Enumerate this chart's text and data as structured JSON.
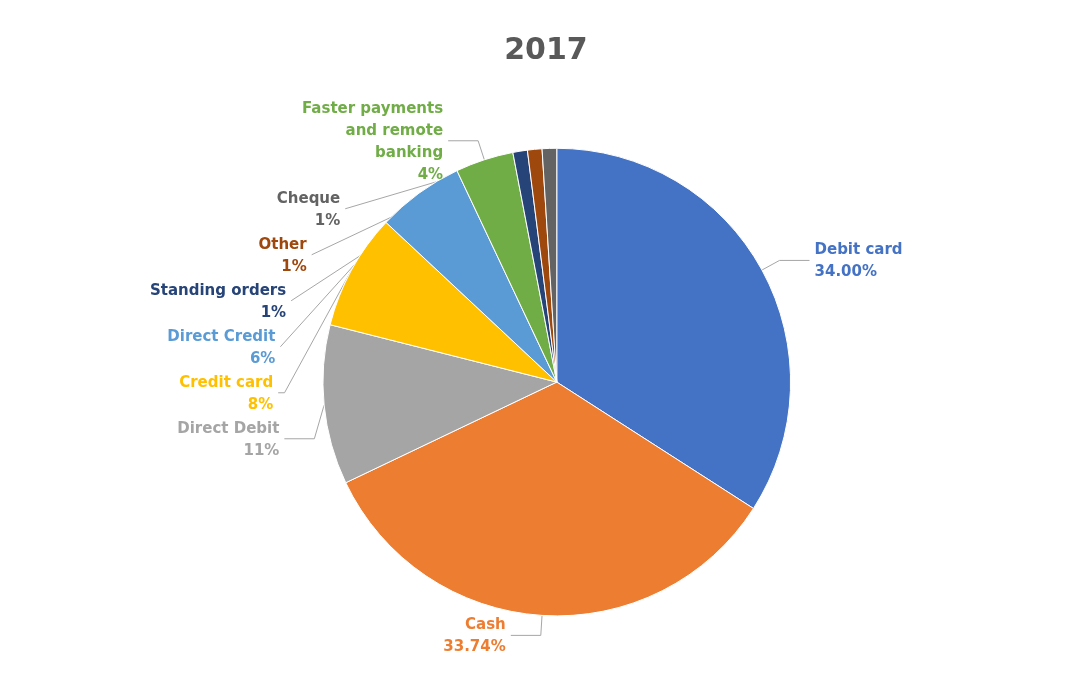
{
  "chart_data": {
    "type": "pie",
    "title": "2017",
    "categories": [
      "Debit card",
      "Cash",
      "Direct Debit",
      "Credit card",
      "Direct Credit",
      "Faster payments and remote banking",
      "Standing orders",
      "Other",
      "Cheque"
    ],
    "values": [
      34.0,
      33.74,
      11,
      8,
      6,
      4,
      1,
      1,
      1
    ],
    "value_labels": [
      "34.00%",
      "33.74%",
      "11%",
      "8%",
      "6%",
      "4%",
      "1%",
      "1%",
      "1%"
    ],
    "colors": [
      "#4472c4",
      "#ed7d31",
      "#a5a5a5",
      "#ffc000",
      "#5b9bd5",
      "#70ad47",
      "#264478",
      "#9e480e",
      "#636363"
    ],
    "legend": false
  }
}
